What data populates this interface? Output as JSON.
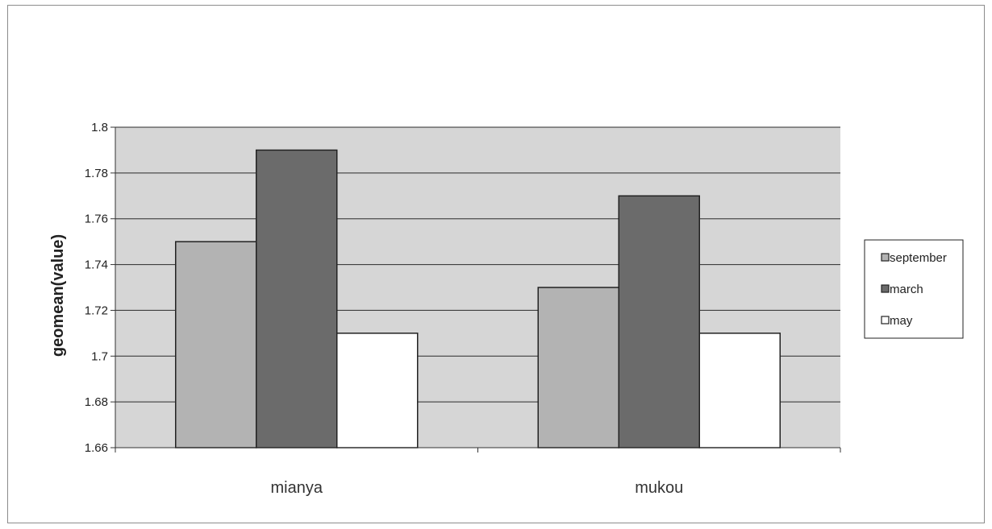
{
  "chart_data": {
    "type": "bar",
    "title": "",
    "xlabel": "",
    "ylabel": "geomean(value)",
    "categories": [
      "mianya",
      "mukou"
    ],
    "series": [
      {
        "name": "september",
        "values": [
          1.75,
          1.73
        ],
        "color": "#b3b3b3"
      },
      {
        "name": "march",
        "values": [
          1.79,
          1.77
        ],
        "color": "#6b6b6b"
      },
      {
        "name": "may",
        "values": [
          1.71,
          1.71
        ],
        "color": "#ffffff"
      }
    ],
    "ylim": [
      1.66,
      1.8
    ],
    "yticks": [
      "1.66",
      "1.68",
      "1.7",
      "1.72",
      "1.74",
      "1.76",
      "1.78",
      "1.8"
    ],
    "grid": true,
    "legend_position": "right",
    "plot_background": "#d6d6d6"
  }
}
